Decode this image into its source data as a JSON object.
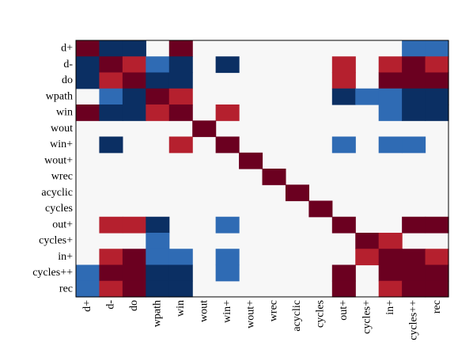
{
  "chart_data": {
    "type": "heatmap",
    "title": "",
    "xlabel": "",
    "ylabel": "",
    "rows": [
      "d+",
      "d-",
      "do",
      "wpath",
      "win",
      "wout",
      "win+",
      "wout+",
      "wrec",
      "acyclic",
      "cycles",
      "out+",
      "cycles+",
      "in+",
      "cycles++",
      "rec"
    ],
    "columns": [
      "d+",
      "d-",
      "do",
      "wpath",
      "win",
      "wout",
      "win+",
      "wout+",
      "wrec",
      "acyclic",
      "cycles",
      "out+",
      "cycles+",
      "in+",
      "cycles++",
      "rec"
    ],
    "value_scale": "-2 = strong blue, -1 = light blue, 0 = empty (light gray), 1 = light red, 2 = dark red",
    "values": [
      [
        2,
        -2,
        -2,
        0,
        2,
        0,
        0,
        0,
        0,
        0,
        0,
        0,
        0,
        0,
        -1,
        -1
      ],
      [
        -2,
        2,
        1,
        -1,
        -2,
        0,
        -2,
        0,
        0,
        0,
        0,
        1,
        0,
        1,
        2,
        1
      ],
      [
        -2,
        1,
        2,
        -2,
        -2,
        0,
        0,
        0,
        0,
        0,
        0,
        1,
        0,
        2,
        2,
        2
      ],
      [
        0,
        -1,
        -2,
        2,
        1,
        0,
        0,
        0,
        0,
        0,
        0,
        -2,
        -1,
        -1,
        -2,
        -2
      ],
      [
        2,
        -2,
        -2,
        1,
        2,
        0,
        1,
        0,
        0,
        0,
        0,
        0,
        0,
        -1,
        -2,
        -2
      ],
      [
        0,
        0,
        0,
        0,
        0,
        2,
        0,
        0,
        0,
        0,
        0,
        0,
        0,
        0,
        0,
        0
      ],
      [
        0,
        -2,
        0,
        0,
        1,
        0,
        2,
        0,
        0,
        0,
        0,
        -1,
        0,
        -1,
        -1,
        0
      ],
      [
        0,
        0,
        0,
        0,
        0,
        0,
        0,
        2,
        0,
        0,
        0,
        0,
        0,
        0,
        0,
        0
      ],
      [
        0,
        0,
        0,
        0,
        0,
        0,
        0,
        0,
        2,
        0,
        0,
        0,
        0,
        0,
        0,
        0
      ],
      [
        0,
        0,
        0,
        0,
        0,
        0,
        0,
        0,
        0,
        2,
        0,
        0,
        0,
        0,
        0,
        0
      ],
      [
        0,
        0,
        0,
        0,
        0,
        0,
        0,
        0,
        0,
        0,
        2,
        0,
        0,
        0,
        0,
        0
      ],
      [
        0,
        1,
        1,
        -2,
        0,
        0,
        -1,
        0,
        0,
        0,
        0,
        2,
        0,
        0,
        2,
        2
      ],
      [
        0,
        0,
        0,
        -1,
        0,
        0,
        0,
        0,
        0,
        0,
        0,
        0,
        2,
        1,
        0,
        0
      ],
      [
        0,
        1,
        2,
        -1,
        -1,
        0,
        -1,
        0,
        0,
        0,
        0,
        0,
        1,
        2,
        2,
        1
      ],
      [
        -1,
        2,
        2,
        -2,
        -2,
        0,
        -1,
        0,
        0,
        0,
        0,
        2,
        0,
        2,
        2,
        2
      ],
      [
        -1,
        1,
        2,
        -2,
        -2,
        0,
        0,
        0,
        0,
        0,
        0,
        2,
        0,
        1,
        2,
        2
      ]
    ],
    "colors": {
      "-2": "#0b2f63",
      "-1": "#2f6bb4",
      "0": "#f7f7f7",
      "1": "#b5202e",
      "2": "#6b0020"
    },
    "grid": false,
    "legend": "none"
  }
}
